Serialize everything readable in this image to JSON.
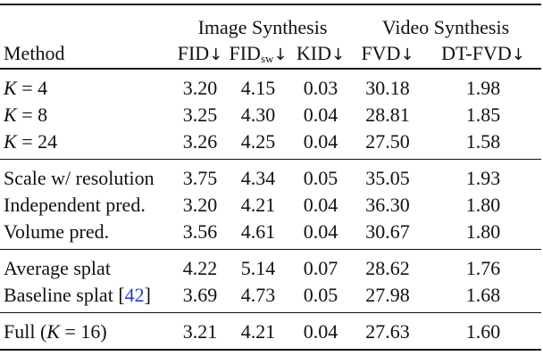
{
  "header": {
    "group_image": "Image Synthesis",
    "group_video": "Video Synthesis",
    "method": "Method",
    "fid": "FID",
    "fid_sw_base": "FID",
    "fid_sw_sub": "sw",
    "kid": "KID",
    "fvd": "FVD",
    "dtfvd": "DT-FVD",
    "arrow": "↓"
  },
  "rows": [
    {
      "method_var": "K",
      "method_rest": " = 4",
      "fid": "3.20",
      "fidsw": "4.15",
      "kid": "0.03",
      "fvd": "30.18",
      "dtfvd": "1.98"
    },
    {
      "method_var": "K",
      "method_rest": " = 8",
      "fid": "3.25",
      "fidsw": "4.30",
      "kid": "0.04",
      "fvd": "28.81",
      "dtfvd": "1.85"
    },
    {
      "method_var": "K",
      "method_rest": " = 24",
      "fid": "3.26",
      "fidsw": "4.25",
      "kid": "0.04",
      "fvd": "27.50",
      "dtfvd": "1.58"
    },
    {
      "method": "Scale w/ resolution",
      "fid": "3.75",
      "fidsw": "4.34",
      "kid": "0.05",
      "fvd": "35.05",
      "dtfvd": "1.93"
    },
    {
      "method": "Independent pred.",
      "fid": "3.20",
      "fidsw": "4.21",
      "kid": "0.04",
      "fvd": "36.30",
      "dtfvd": "1.80"
    },
    {
      "method": "Volume pred.",
      "fid": "3.56",
      "fidsw": "4.61",
      "kid": "0.04",
      "fvd": "30.67",
      "dtfvd": "1.80"
    },
    {
      "method": "Average splat",
      "fid": "4.22",
      "fidsw": "5.14",
      "kid": "0.07",
      "fvd": "28.62",
      "dtfvd": "1.76"
    },
    {
      "method": "Baseline splat ",
      "cite_open": "[",
      "cite": "42",
      "cite_close": "]",
      "fid": "3.69",
      "fidsw": "4.73",
      "kid": "0.05",
      "fvd": "27.98",
      "dtfvd": "1.68"
    },
    {
      "method_pre": "Full (",
      "method_var": "K",
      "method_rest": " = 16)",
      "fid": "3.21",
      "fidsw": "4.21",
      "kid": "0.04",
      "fvd": "27.63",
      "dtfvd": "1.60"
    }
  ]
}
